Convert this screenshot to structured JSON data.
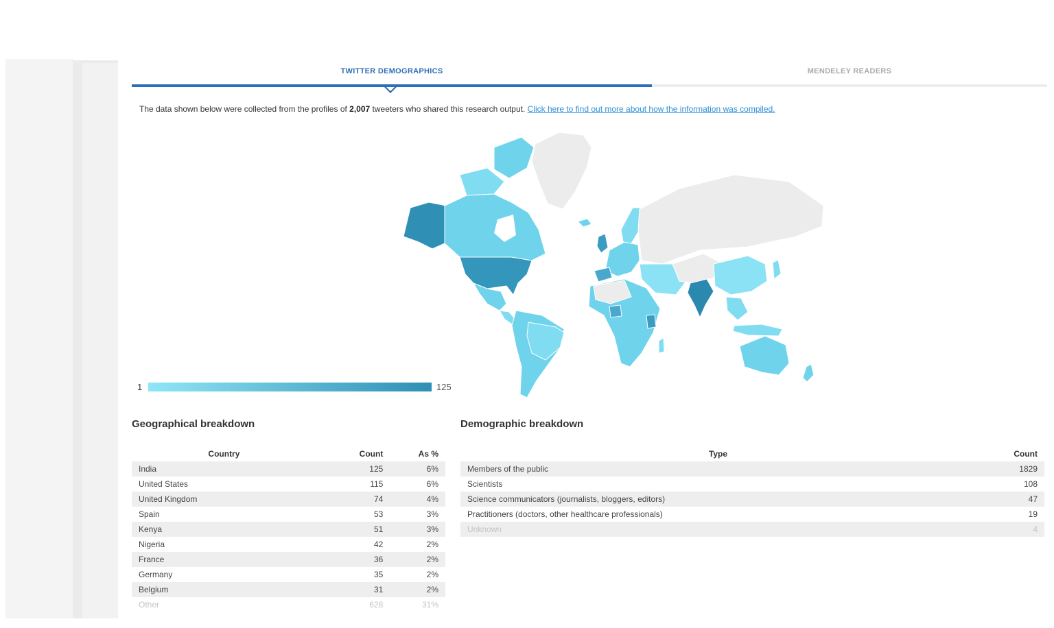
{
  "tabs": {
    "twitter_label": "TWITTER DEMOGRAPHICS",
    "mendeley_label": "MENDELEY READERS"
  },
  "intro": {
    "prefix": "The data shown below were collected from the profiles of ",
    "count": "2,007",
    "suffix": " tweeters who shared this research output. ",
    "link": "Click here to find out more about how the information was compiled."
  },
  "map_legend": {
    "min": "1",
    "max": "125",
    "colors": [
      "#90e6f7",
      "#2f8fb5"
    ]
  },
  "geo": {
    "title": "Geographical breakdown",
    "headers": [
      "Country",
      "Count",
      "As %"
    ],
    "rows": [
      {
        "country": "India",
        "count": "125",
        "pct": "6%"
      },
      {
        "country": "United States",
        "count": "115",
        "pct": "6%"
      },
      {
        "country": "United Kingdom",
        "count": "74",
        "pct": "4%"
      },
      {
        "country": "Spain",
        "count": "53",
        "pct": "3%"
      },
      {
        "country": "Kenya",
        "count": "51",
        "pct": "3%"
      },
      {
        "country": "Nigeria",
        "count": "42",
        "pct": "2%"
      },
      {
        "country": "France",
        "count": "36",
        "pct": "2%"
      },
      {
        "country": "Germany",
        "count": "35",
        "pct": "2%"
      },
      {
        "country": "Belgium",
        "count": "31",
        "pct": "2%"
      },
      {
        "country": "Other",
        "count": "628",
        "pct": "31%"
      }
    ]
  },
  "demo": {
    "title": "Demographic breakdown",
    "headers": [
      "Type",
      "Count"
    ],
    "rows": [
      {
        "type": "Members of the public",
        "count": "1829"
      },
      {
        "type": "Scientists",
        "count": "108"
      },
      {
        "type": "Science communicators (journalists, bloggers, editors)",
        "count": "47"
      },
      {
        "type": "Practitioners (doctors, other healthcare professionals)",
        "count": "19"
      },
      {
        "type": "Unknown",
        "count": "4"
      }
    ]
  }
}
